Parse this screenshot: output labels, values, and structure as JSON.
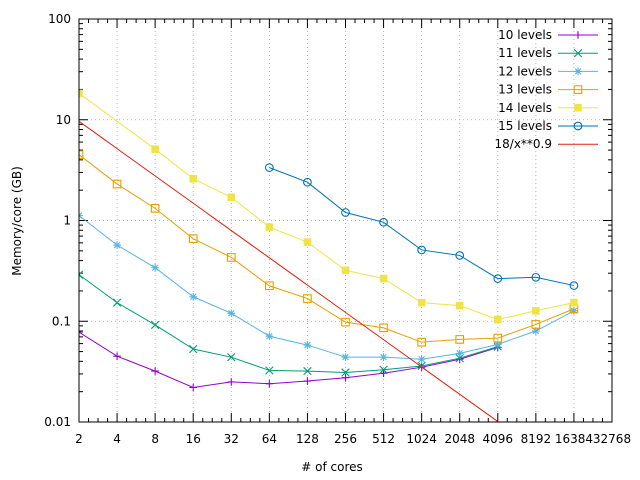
{
  "chart_data": {
    "type": "line",
    "title": "",
    "xlabel": "# of cores",
    "ylabel": "Memory/core (GB)",
    "xscale": "log2",
    "yscale": "log10",
    "xlim": [
      2,
      32768
    ],
    "ylim": [
      0.01,
      100
    ],
    "x_ticks": [
      2,
      4,
      8,
      16,
      32,
      64,
      128,
      256,
      512,
      1024,
      2048,
      4096,
      8192,
      16384,
      32768
    ],
    "x_tick_labels": [
      "2",
      "4",
      "8",
      "16",
      "32",
      "64",
      "128",
      "256",
      "512",
      "1024",
      "2048",
      "4096",
      "8192",
      "16384",
      "32768"
    ],
    "y_ticks": [
      0.01,
      0.1,
      1,
      10,
      100
    ],
    "y_tick_labels": [
      "0.01",
      "0.1",
      "1",
      "10",
      "100"
    ],
    "legend_position": "top-right",
    "series": [
      {
        "name": "10 levels",
        "color": "#9400d3",
        "marker": "plus",
        "x": [
          2,
          4,
          8,
          16,
          32,
          64,
          128,
          256,
          512,
          1024,
          2048,
          4096
        ],
        "values": [
          0.078,
          0.045,
          0.032,
          0.022,
          0.025,
          0.024,
          0.0255,
          0.0275,
          0.0305,
          0.035,
          0.042,
          0.055
        ]
      },
      {
        "name": "11 levels",
        "color": "#009e73",
        "marker": "cross",
        "x": [
          2,
          4,
          8,
          16,
          32,
          64,
          128,
          256,
          512,
          1024,
          2048,
          4096
        ],
        "values": [
          0.29,
          0.153,
          0.092,
          0.053,
          0.044,
          0.0325,
          0.032,
          0.031,
          0.033,
          0.036,
          0.043,
          0.056
        ]
      },
      {
        "name": "12 levels",
        "color": "#56b4e9",
        "marker": "star",
        "x": [
          2,
          4,
          8,
          16,
          32,
          64,
          128,
          256,
          512,
          1024,
          2048,
          4096,
          8192,
          16384
        ],
        "values": [
          1.12,
          0.57,
          0.34,
          0.175,
          0.12,
          0.071,
          0.058,
          0.044,
          0.044,
          0.042,
          0.048,
          0.059,
          0.08,
          0.127
        ]
      },
      {
        "name": "13 levels",
        "color": "#e69f00",
        "marker": "open-square",
        "x": [
          2,
          4,
          8,
          16,
          32,
          64,
          128,
          256,
          512,
          1024,
          2048,
          4096,
          8192,
          16384
        ],
        "values": [
          4.5,
          2.3,
          1.32,
          0.66,
          0.43,
          0.225,
          0.168,
          0.098,
          0.086,
          0.062,
          0.066,
          0.068,
          0.093,
          0.133
        ]
      },
      {
        "name": "14 levels",
        "color": "#f0e442",
        "marker": "filled-square",
        "x": [
          2,
          8,
          16,
          32,
          64,
          128,
          256,
          512,
          1024,
          2048,
          4096,
          8192,
          16384
        ],
        "values": [
          18.3,
          5.1,
          2.6,
          1.7,
          0.86,
          0.61,
          0.32,
          0.265,
          0.153,
          0.143,
          0.104,
          0.127,
          0.153
        ]
      },
      {
        "name": "15 levels",
        "color": "#0072b2",
        "marker": "open-circle",
        "x": [
          64,
          128,
          256,
          512,
          1024,
          2048,
          4096,
          8192,
          16384
        ],
        "values": [
          3.35,
          2.4,
          1.2,
          0.96,
          0.51,
          0.45,
          0.265,
          0.273,
          0.226
        ]
      },
      {
        "name": "18/x**0.9",
        "color": "#e51e10",
        "marker": "none",
        "function": "18/x**0.9",
        "x": [
          2,
          4096
        ],
        "values": [
          9.65,
          0.0104
        ]
      }
    ]
  }
}
